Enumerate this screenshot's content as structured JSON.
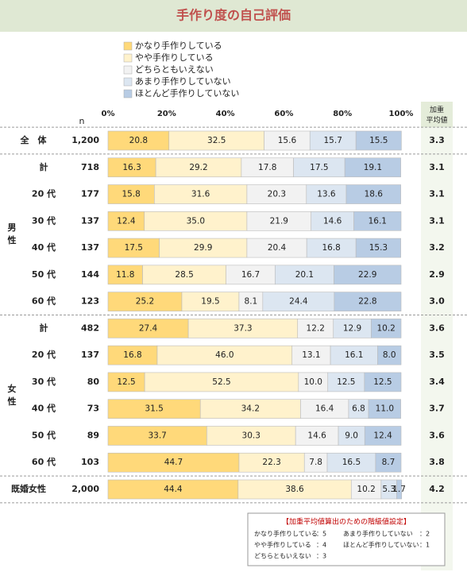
{
  "chart_data": {
    "type": "stacked-bar-horizontal",
    "title": "手作り度の自己評価",
    "n_header": "n",
    "average_header": "加重平均値",
    "xlim": [
      0,
      100
    ],
    "xticks": [
      {
        "value": 0,
        "label": "0%"
      },
      {
        "value": 20,
        "label": "20%"
      },
      {
        "value": 40,
        "label": "40%"
      },
      {
        "value": 60,
        "label": "60%"
      },
      {
        "value": 80,
        "label": "80%"
      },
      {
        "value": 100,
        "label": "100%"
      }
    ],
    "categories": [
      "全　体",
      "計",
      "20 代",
      "30 代",
      "40 代",
      "50 代",
      "60 代",
      "計",
      "20 代",
      "30 代",
      "40 代",
      "50 代",
      "60 代",
      "既婚女性"
    ],
    "groups": [
      {
        "label": "男性",
        "from": 1,
        "to": 6
      },
      {
        "label": "女性",
        "from": 7,
        "to": 12
      }
    ],
    "n": [
      "1,200",
      "718",
      "177",
      "137",
      "137",
      "144",
      "123",
      "482",
      "137",
      "80",
      "73",
      "89",
      "103",
      "2,000"
    ],
    "weighted_average": [
      "3.3",
      "3.1",
      "3.1",
      "3.1",
      "3.2",
      "2.9",
      "3.0",
      "3.6",
      "3.5",
      "3.4",
      "3.7",
      "3.6",
      "3.8",
      "4.2"
    ],
    "series": [
      {
        "name": "かなり手作りしている",
        "color": "#ffd97a",
        "values": [
          20.8,
          16.3,
          15.8,
          12.4,
          17.5,
          11.8,
          25.2,
          27.4,
          16.8,
          12.5,
          31.5,
          33.7,
          44.7,
          44.4
        ],
        "value_labels": [
          "20.8",
          "16.3",
          "15.8",
          "12.4",
          "17.5",
          "11.8",
          "25.2",
          "27.4",
          "16.8",
          "12.5",
          "31.5",
          "33.7",
          "44.7",
          "44.4"
        ]
      },
      {
        "name": "やや手作りしている",
        "color": "#fff2cc",
        "values": [
          32.5,
          29.2,
          31.6,
          35.0,
          29.9,
          28.5,
          19.5,
          37.3,
          46.0,
          52.5,
          34.2,
          30.3,
          22.3,
          38.6
        ],
        "value_labels": [
          "32.5",
          "29.2",
          "31.6",
          "35.0",
          "29.9",
          "28.5",
          "19.5",
          "37.3",
          "46.0",
          "52.5",
          "34.2",
          "30.3",
          "22.3",
          "38.6"
        ]
      },
      {
        "name": "どちらともいえない",
        "color": "#f2f2f2",
        "values": [
          15.6,
          17.8,
          20.3,
          21.9,
          20.4,
          16.7,
          8.1,
          12.2,
          13.1,
          10.0,
          16.4,
          14.6,
          7.8,
          10.2
        ],
        "value_labels": [
          "15.6",
          "17.8",
          "20.3",
          "21.9",
          "20.4",
          "16.7",
          "8.1",
          "12.2",
          "13.1",
          "10.0",
          "16.4",
          "14.6",
          "7.8",
          "10.2"
        ]
      },
      {
        "name": "あまり手作りしていない",
        "color": "#dce6f1",
        "values": [
          15.7,
          17.5,
          13.6,
          14.6,
          16.8,
          20.1,
          24.4,
          12.9,
          16.1,
          12.5,
          6.8,
          9.0,
          16.5,
          5.3
        ],
        "value_labels": [
          "15.7",
          "17.5",
          "13.6",
          "14.6",
          "16.8",
          "20.1",
          "24.4",
          "12.9",
          "16.1",
          "12.5",
          "6.8",
          "9.0",
          "16.5",
          "5.3"
        ]
      },
      {
        "name": "ほとんど手作りしていない",
        "color": "#b8cce4",
        "values": [
          15.5,
          19.1,
          18.6,
          16.1,
          15.3,
          22.9,
          22.8,
          10.2,
          8.0,
          12.5,
          11.0,
          12.4,
          8.7,
          1.7
        ],
        "value_labels": [
          "15.5",
          "19.1",
          "18.6",
          "16.1",
          "15.3",
          "22.9",
          "22.8",
          "10.2",
          "8.0",
          "12.5",
          "11.0",
          "12.4",
          "8.7",
          "1.7"
        ]
      }
    ],
    "note": {
      "title": "【加重平均値算出のための階級値設定】",
      "items": [
        {
          "label": "かなり手作りしている",
          "value": "：5"
        },
        {
          "label": "やや手作りしている",
          "value": "：4"
        },
        {
          "label": "どちらともいえない",
          "value": "：3"
        },
        {
          "label": "あまり手作りしていない",
          "value": "：2"
        },
        {
          "label": "ほとんど手作りしていない",
          "value": "：1"
        }
      ]
    }
  }
}
